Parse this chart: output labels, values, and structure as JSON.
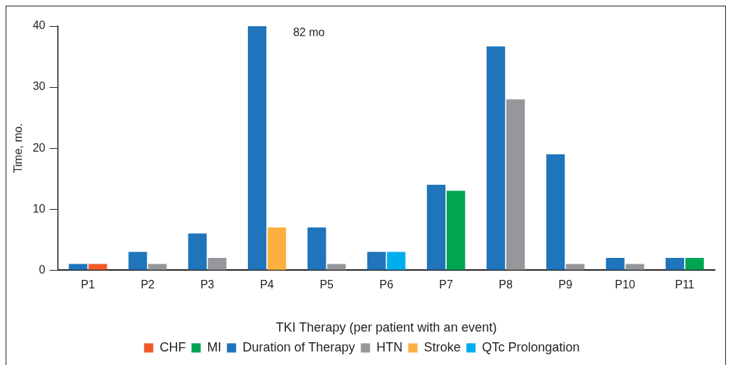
{
  "chart_data": {
    "type": "bar",
    "xlabel": "TKI Therapy (per patient with an event)",
    "ylabel": "Time, mo.",
    "categories": [
      "P1",
      "P2",
      "P3",
      "P4",
      "P5",
      "P6",
      "P7",
      "P8",
      "P9",
      "P10",
      "P11"
    ],
    "series": [
      {
        "name": "CHF",
        "color": "#f15a2b",
        "values": [
          1,
          null,
          null,
          null,
          null,
          null,
          null,
          null,
          null,
          null,
          null
        ]
      },
      {
        "name": "MI",
        "color": "#00a451",
        "values": [
          null,
          null,
          null,
          null,
          null,
          null,
          13,
          null,
          null,
          null,
          2
        ]
      },
      {
        "name": "Duration of Therapy",
        "color": "#1f74bb",
        "values": [
          1,
          3,
          6,
          40,
          7,
          3,
          14,
          36.7,
          19,
          2,
          2
        ]
      },
      {
        "name": "HTN",
        "color": "#96979b",
        "values": [
          null,
          1,
          2,
          null,
          1,
          null,
          null,
          28,
          1,
          1,
          null
        ]
      },
      {
        "name": "Stroke",
        "color": "#fbb040",
        "values": [
          null,
          null,
          null,
          7,
          null,
          null,
          null,
          null,
          null,
          null,
          null
        ]
      },
      {
        "name": "QTc Prolongation",
        "color": "#00aeef",
        "values": [
          null,
          null,
          null,
          null,
          null,
          3,
          null,
          null,
          null,
          null,
          null
        ]
      }
    ],
    "ylim": [
      0,
      40
    ],
    "yticks": [
      0,
      10,
      20,
      30,
      40
    ],
    "grid": false,
    "legend": "bottom",
    "annotations": [
      {
        "text": "82 mo",
        "x": "P4",
        "y": 40
      }
    ]
  }
}
